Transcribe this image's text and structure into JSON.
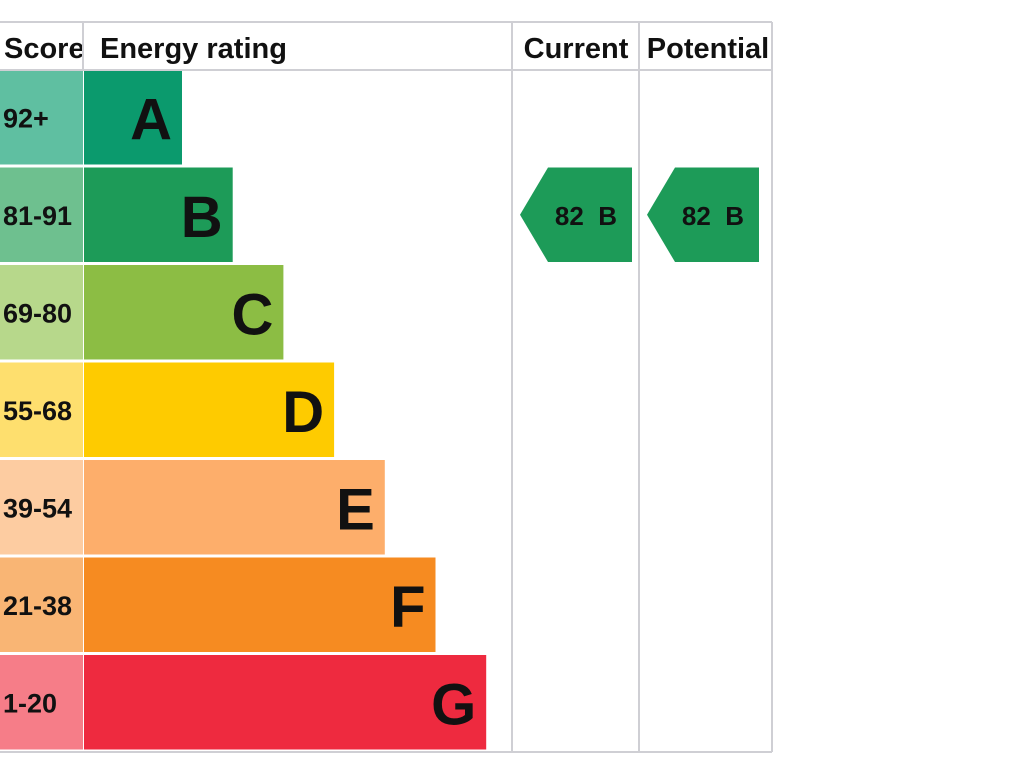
{
  "chart_data": {
    "type": "table",
    "headers": {
      "score": "Score",
      "energy_rating": "Energy rating",
      "current": "Current",
      "potential": "Potential"
    },
    "bands": [
      {
        "score": "92+",
        "letter": "A",
        "color": "#0b9a6d",
        "score_color": "#5fbfa1"
      },
      {
        "score": "81-91",
        "letter": "B",
        "color": "#1d9b58",
        "score_color": "#6ec08f"
      },
      {
        "score": "69-80",
        "letter": "C",
        "color": "#8cbd44",
        "score_color": "#b7d88b"
      },
      {
        "score": "55-68",
        "letter": "D",
        "color": "#fecb00",
        "score_color": "#fedf6e"
      },
      {
        "score": "39-54",
        "letter": "E",
        "color": "#fdae6b",
        "score_color": "#fdcca1"
      },
      {
        "score": "21-38",
        "letter": "F",
        "color": "#f68b21",
        "score_color": "#f9b574"
      },
      {
        "score": "1-20",
        "letter": "G",
        "color": "#ee2a3f",
        "score_color": "#f67d88"
      }
    ],
    "current": {
      "value": 82,
      "band": "B",
      "label": "82  B"
    },
    "potential": {
      "value": 82,
      "band": "B",
      "label": "82  B"
    }
  }
}
